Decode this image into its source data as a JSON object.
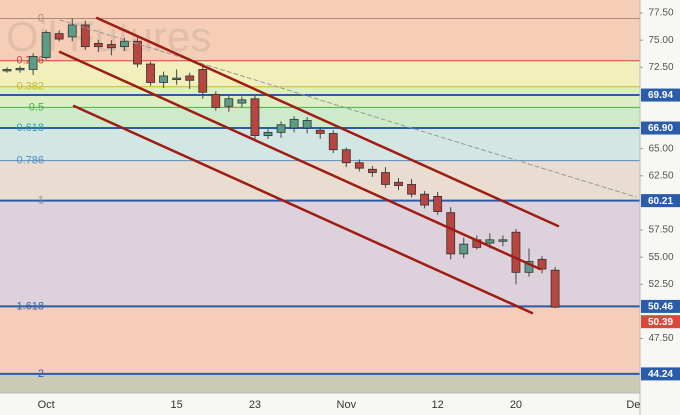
{
  "chart_data": {
    "type": "candlestick",
    "title": "Oil Futures",
    "x": [
      null,
      null,
      null,
      "Oct",
      null,
      null,
      null,
      null,
      null,
      null,
      null,
      null,
      null,
      "15",
      null,
      null,
      null,
      null,
      null,
      "23",
      null,
      null,
      null,
      null,
      null,
      null,
      "Nov",
      null,
      null,
      null,
      null,
      null,
      null,
      "12",
      null,
      null,
      null,
      null,
      null,
      "20",
      null,
      null,
      null,
      null,
      null,
      null,
      null,
      null,
      "De",
      null
    ],
    "open": [
      72.2,
      72.3,
      72.3,
      73.4,
      75.6,
      75.3,
      76.4,
      74.7,
      74.6,
      74.4,
      74.9,
      72.8,
      71.1,
      71.4,
      71.7,
      72.3,
      70.0,
      68.9,
      69.2,
      69.6,
      66.2,
      66.5,
      66.9,
      66.9,
      66.7,
      66.4,
      64.9,
      63.7,
      63.1,
      62.8,
      61.9,
      61.7,
      60.8,
      60.6,
      59.1,
      55.3,
      56.6,
      56.3,
      56.5,
      57.3,
      53.6,
      54.8,
      53.8,
      null,
      null,
      null,
      null,
      null,
      null,
      null
    ],
    "high": [
      72.5,
      72.6,
      73.8,
      75.9,
      75.9,
      77.0,
      76.8,
      75.0,
      75.0,
      75.2,
      75.2,
      73.0,
      72.1,
      72.3,
      72.0,
      72.6,
      70.3,
      69.9,
      69.8,
      69.9,
      66.8,
      67.5,
      68.0,
      67.9,
      67.0,
      66.7,
      65.1,
      64.0,
      63.4,
      63.3,
      62.3,
      62.2,
      61.1,
      61.0,
      59.6,
      56.8,
      57.0,
      57.2,
      57.0,
      57.6,
      55.8,
      55.1,
      54.1,
      null,
      null,
      null,
      null,
      null,
      null,
      null
    ],
    "low": [
      72.0,
      72.0,
      71.8,
      73.2,
      74.9,
      74.9,
      74.1,
      73.9,
      73.6,
      74.0,
      72.5,
      70.8,
      70.6,
      70.9,
      70.5,
      69.6,
      68.5,
      68.4,
      68.8,
      65.9,
      65.9,
      66.0,
      66.5,
      66.4,
      65.9,
      64.6,
      63.3,
      62.9,
      62.4,
      61.4,
      61.2,
      60.5,
      59.5,
      58.9,
      54.8,
      54.9,
      55.7,
      55.8,
      56.0,
      52.5,
      53.2,
      53.5,
      50.3,
      null,
      null,
      null,
      null,
      null,
      null,
      null
    ],
    "close": [
      72.3,
      72.4,
      73.5,
      75.7,
      75.1,
      76.4,
      74.4,
      74.4,
      74.3,
      74.9,
      72.8,
      71.1,
      71.7,
      71.5,
      71.3,
      70.2,
      68.8,
      69.6,
      69.5,
      66.2,
      66.5,
      67.2,
      67.7,
      67.6,
      66.4,
      64.9,
      63.7,
      63.2,
      62.8,
      61.7,
      61.6,
      60.8,
      59.8,
      59.2,
      55.3,
      56.2,
      55.9,
      56.6,
      56.6,
      53.6,
      54.6,
      53.9,
      50.39,
      null,
      null,
      null,
      null,
      null,
      null,
      null
    ],
    "up_color": "#5c9c86",
    "down_color": "#b8453f",
    "ylim": [
      42.48,
      78.7
    ],
    "yticks": [
      {
        "value": 77.5,
        "label": "77.50"
      },
      {
        "value": 75,
        "label": "75.00"
      },
      {
        "value": 72.5,
        "label": "72.50"
      },
      {
        "value": 65,
        "label": "65.00"
      },
      {
        "value": 62.5,
        "label": "62.50"
      },
      {
        "value": 57.5,
        "label": "57.50"
      },
      {
        "value": 55,
        "label": "55.00"
      },
      {
        "value": 52.5,
        "label": "52.50"
      },
      {
        "value": 47.5,
        "label": "47.50"
      }
    ],
    "top_fill": "#f6cdb6",
    "fib_levels": [
      {
        "label": "0",
        "value": 77.0,
        "color": "#b08a78",
        "fill": "#f6cdb6"
      },
      {
        "label": "0.236",
        "value": 73.1,
        "color": "#d04040",
        "fill": "#f1efbb"
      },
      {
        "label": "0.382",
        "value": 70.7,
        "color": "#c8b830",
        "fill": "#dcefc4"
      },
      {
        "label": "0.5",
        "value": 68.8,
        "color": "#48b048",
        "fill": "#cdebcb"
      },
      {
        "label": "0.618",
        "value": 66.9,
        "color": "#30a0a8",
        "fill": "#d2e6e4"
      },
      {
        "label": "0.786",
        "value": 63.9,
        "color": "#5a8cc0",
        "fill": "#e8ddd0"
      },
      {
        "label": "1",
        "value": 60.21,
        "color": "#8a8a8a",
        "fill": "#ddd2dc"
      },
      {
        "label": "1.618",
        "value": 50.46,
        "color": "#3060b0",
        "fill": "#f6cdb8"
      },
      {
        "label": "2",
        "value": 44.24,
        "color": "#3060b0",
        "fill": "#cbcbb4"
      }
    ],
    "price_lines": [
      {
        "value": 69.94,
        "label": "69.94"
      },
      {
        "value": 66.9,
        "label": "66.90"
      },
      {
        "value": 60.21,
        "label": "60.21"
      },
      {
        "value": 50.46,
        "label": "50.46"
      },
      {
        "value": 44.24,
        "label": "44.24"
      }
    ],
    "price_line_color": "#2a5caa",
    "last_price": {
      "value": 50.39,
      "label": "50.39",
      "color": "#d9483b"
    }
  }
}
